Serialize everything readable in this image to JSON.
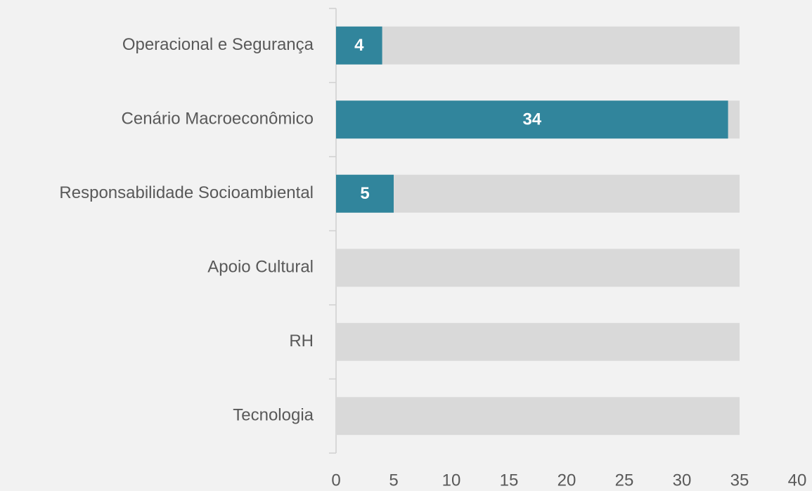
{
  "chart_data": {
    "type": "hbar",
    "categories": [
      "Operacional e Segurança",
      "Cenário Macroeconômico",
      "Responsabilidade Socioambiental",
      "Apoio Cultural",
      "RH",
      "Tecnologia"
    ],
    "values": [
      4,
      34,
      5,
      null,
      null,
      null
    ],
    "background_values": [
      35,
      35,
      35,
      35,
      35,
      35
    ],
    "color": "#31859c",
    "background_color": "#d9d9d9",
    "xlim": [
      0,
      40
    ],
    "xticks": [
      0,
      5,
      10,
      15,
      20,
      25,
      30,
      35,
      40
    ],
    "grid": false
  }
}
